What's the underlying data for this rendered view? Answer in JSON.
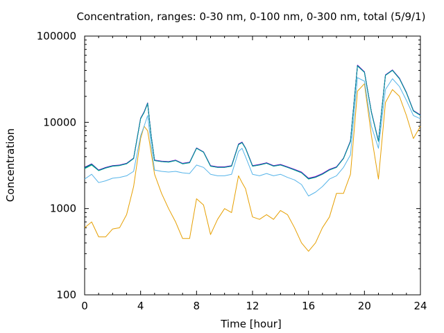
{
  "chart_data": {
    "type": "line",
    "title": "Concentration, ranges: 0-30 nm, 0-100 nm, 0-300 nm, total (5/9/1)",
    "xlabel": "Time [hour]",
    "ylabel": "Concentration",
    "xlim": [
      0,
      24
    ],
    "ylim": [
      100,
      100000
    ],
    "yscale": "log",
    "grid": false,
    "legend": "none",
    "x_ticks": [
      "0",
      "4",
      "8",
      "12",
      "16",
      "20",
      "24"
    ],
    "x_tick_values": [
      0,
      4,
      8,
      12,
      16,
      20,
      24
    ],
    "y_ticks": [
      "100",
      "1000",
      "10000",
      "100000"
    ],
    "y_tick_values": [
      100,
      1000,
      10000,
      100000
    ],
    "x": [
      0,
      0.5,
      1,
      1.5,
      2,
      2.5,
      3,
      3.5,
      4,
      4.25,
      4.5,
      4.75,
      5,
      5.5,
      6,
      6.5,
      7,
      7.5,
      8,
      8.5,
      9,
      9.5,
      10,
      10.5,
      11,
      11.25,
      11.5,
      12,
      12.5,
      13,
      13.5,
      14,
      14.5,
      15,
      15.5,
      16,
      16.5,
      17,
      17.5,
      18,
      18.5,
      19,
      19.5,
      20,
      20.5,
      21,
      21.5,
      22,
      22.5,
      23,
      23.5,
      24
    ],
    "series": [
      {
        "color": "#e69f00",
        "values": [
          600,
          700,
          470,
          470,
          580,
          600,
          850,
          1800,
          6500,
          9000,
          8000,
          4500,
          2500,
          1500,
          1000,
          700,
          450,
          450,
          1300,
          1100,
          500,
          750,
          1000,
          900,
          2400,
          2000,
          1700,
          800,
          750,
          850,
          750,
          950,
          850,
          600,
          400,
          320,
          400,
          600,
          800,
          1500,
          1500,
          2500,
          23000,
          28000,
          7000,
          2200,
          17000,
          24000,
          20000,
          12000,
          6500,
          9000
        ]
      },
      {
        "color": "#56b4e9",
        "values": [
          2200,
          2500,
          2000,
          2100,
          2250,
          2300,
          2400,
          2700,
          7000,
          9000,
          12000,
          5500,
          2800,
          2700,
          2650,
          2700,
          2600,
          2550,
          3200,
          3000,
          2500,
          2400,
          2400,
          2500,
          4600,
          5000,
          4000,
          2500,
          2400,
          2550,
          2400,
          2500,
          2300,
          2150,
          1900,
          1400,
          1550,
          1800,
          2200,
          2400,
          3000,
          4200,
          33000,
          30000,
          9000,
          5000,
          24000,
          32000,
          26000,
          18000,
          12000,
          11000
        ]
      },
      {
        "color": "#009e73",
        "values": [
          2900,
          3200,
          2750,
          2950,
          3100,
          3150,
          3300,
          3800,
          11000,
          13000,
          16500,
          7000,
          3600,
          3500,
          3450,
          3600,
          3300,
          3400,
          5000,
          4500,
          3100,
          3000,
          3000,
          3100,
          5500,
          5800,
          5000,
          3100,
          3200,
          3350,
          3100,
          3200,
          3000,
          2800,
          2600,
          2200,
          2300,
          2500,
          2800,
          3000,
          3800,
          6000,
          45000,
          38000,
          13000,
          6000,
          35000,
          40000,
          32000,
          22000,
          13500,
          12000
        ]
      },
      {
        "color": "#9400d3",
        "values": [
          3000,
          3300,
          2800,
          3000,
          3150,
          3200,
          3350,
          3850,
          11200,
          13200,
          16800,
          7100,
          3650,
          3550,
          3500,
          3650,
          3350,
          3450,
          5050,
          4550,
          3150,
          3050,
          3050,
          3150,
          5600,
          5900,
          5050,
          3150,
          3250,
          3400,
          3150,
          3250,
          3050,
          2850,
          2650,
          2250,
          2350,
          2550,
          2850,
          3050,
          3850,
          6100,
          46000,
          38500,
          13200,
          6100,
          35500,
          40500,
          32500,
          22300,
          13700,
          12200
        ]
      },
      {
        "color": "#000080",
        "values": [
          3000,
          3280,
          2780,
          2980,
          3130,
          3180,
          3330,
          3830,
          11100,
          13100,
          16700,
          7050,
          3620,
          3520,
          3480,
          3620,
          3320,
          3420,
          5020,
          4520,
          3120,
          3020,
          3020,
          3120,
          5550,
          5850,
          5020,
          3120,
          3220,
          3370,
          3120,
          3220,
          3020,
          2820,
          2620,
          2230,
          2320,
          2520,
          2820,
          3020,
          3820,
          6050,
          45500,
          38200,
          13100,
          6050,
          35200,
          40200,
          32200,
          22100,
          13600,
          12100
        ]
      },
      {
        "color": "#009e9e",
        "values": [
          2950,
          3250,
          2760,
          2960,
          3110,
          3160,
          3310,
          3810,
          11050,
          13050,
          16600,
          7020,
          3610,
          3510,
          3460,
          3610,
          3310,
          3410,
          5010,
          4510,
          3110,
          3010,
          3010,
          3110,
          5520,
          5820,
          5010,
          3110,
          3210,
          3360,
          3110,
          3210,
          3010,
          2810,
          2610,
          2210,
          2310,
          2510,
          2810,
          3010,
          3810,
          6020,
          45200,
          38000,
          13050,
          6020,
          35100,
          40100,
          32100,
          22050,
          13550,
          12050
        ]
      }
    ]
  }
}
